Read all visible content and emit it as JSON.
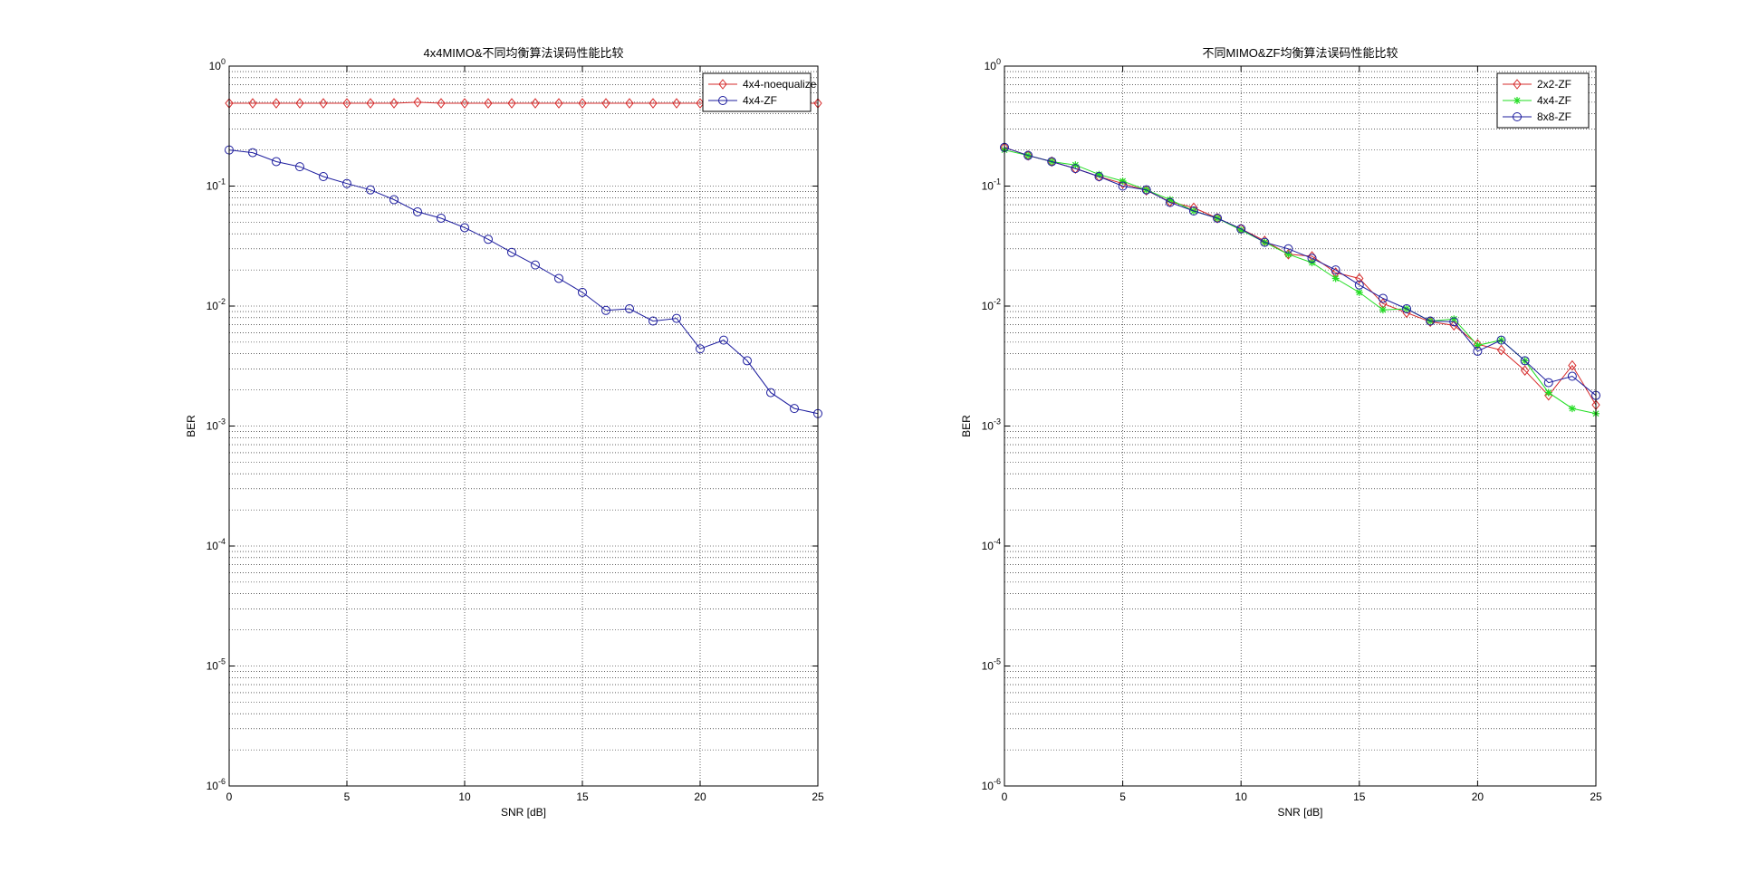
{
  "figure": {
    "background": "#ffffff"
  },
  "chart_data": [
    {
      "type": "line",
      "title": "4x4MIMO&不同均衡算法误码性能比较",
      "xlabel": "SNR [dB]",
      "ylabel": "BER",
      "xlim": [
        0,
        25
      ],
      "ylim": [
        1e-06,
        1
      ],
      "yscale": "log",
      "grid": true,
      "legend_position": "top-right",
      "x_ticks": [
        "0",
        "5",
        "10",
        "15",
        "20",
        "25"
      ],
      "y_tick_exponents": [
        "0",
        "-1",
        "-2",
        "-3",
        "-4",
        "-5",
        "-6"
      ],
      "x": [
        0,
        1,
        2,
        3,
        4,
        5,
        6,
        7,
        8,
        9,
        10,
        11,
        12,
        13,
        14,
        15,
        16,
        17,
        18,
        19,
        20,
        21,
        22,
        23,
        24,
        25
      ],
      "series": [
        {
          "name": "4x4-noequalize",
          "color": "#d62b2b",
          "marker": "diamond",
          "values": [
            0.49,
            0.49,
            0.49,
            0.49,
            0.49,
            0.49,
            0.49,
            0.49,
            0.5,
            0.49,
            0.49,
            0.49,
            0.49,
            0.49,
            0.49,
            0.49,
            0.49,
            0.49,
            0.49,
            0.49,
            0.49,
            0.49,
            0.49,
            0.49,
            0.49,
            0.49
          ]
        },
        {
          "name": "4x4-ZF",
          "color": "#1d1d9e",
          "marker": "circle",
          "values": [
            0.2,
            0.19,
            0.16,
            0.145,
            0.12,
            0.105,
            0.093,
            0.077,
            0.061,
            0.054,
            0.045,
            0.036,
            0.028,
            0.022,
            0.017,
            0.013,
            0.0092,
            0.0095,
            0.0075,
            0.0079,
            0.0044,
            0.0052,
            0.0035,
            0.0019,
            0.0014,
            0.00127
          ]
        }
      ]
    },
    {
      "type": "line",
      "title": "不同MIMO&ZF均衡算法误码性能比较",
      "xlabel": "SNR [dB]",
      "ylabel": "BER",
      "xlim": [
        0,
        25
      ],
      "ylim": [
        1e-06,
        1
      ],
      "yscale": "log",
      "grid": true,
      "legend_position": "top-right",
      "x_ticks": [
        "0",
        "5",
        "10",
        "15",
        "20",
        "25"
      ],
      "y_tick_exponents": [
        "0",
        "-1",
        "-2",
        "-3",
        "-4",
        "-5",
        "-6"
      ],
      "x": [
        0,
        1,
        2,
        3,
        4,
        5,
        6,
        7,
        8,
        9,
        10,
        11,
        12,
        13,
        14,
        15,
        16,
        17,
        18,
        19,
        20,
        21,
        22,
        23,
        24,
        25
      ],
      "series": [
        {
          "name": "2x2-ZF",
          "color": "#d62b2b",
          "marker": "diamond",
          "values": [
            0.21,
            0.18,
            0.16,
            0.14,
            0.12,
            0.105,
            0.092,
            0.074,
            0.066,
            0.054,
            0.044,
            0.035,
            0.027,
            0.026,
            0.019,
            0.017,
            0.0105,
            0.0088,
            0.0074,
            0.0069,
            0.0048,
            0.0043,
            0.0029,
            0.0018,
            0.0032,
            0.0015
          ]
        },
        {
          "name": "4x4-ZF",
          "color": "#22dd22",
          "marker": "star",
          "values": [
            0.2,
            0.18,
            0.16,
            0.15,
            0.125,
            0.11,
            0.093,
            0.077,
            0.062,
            0.054,
            0.043,
            0.034,
            0.027,
            0.023,
            0.017,
            0.013,
            0.0093,
            0.0095,
            0.0075,
            0.0078,
            0.0047,
            0.0052,
            0.0035,
            0.0019,
            0.0014,
            0.00127
          ]
        },
        {
          "name": "8x8-ZF",
          "color": "#1d1d9e",
          "marker": "circle",
          "values": [
            0.21,
            0.18,
            0.16,
            0.14,
            0.12,
            0.1,
            0.093,
            0.073,
            0.062,
            0.054,
            0.044,
            0.034,
            0.03,
            0.025,
            0.02,
            0.015,
            0.0116,
            0.0095,
            0.0075,
            0.0074,
            0.0042,
            0.0052,
            0.0035,
            0.0023,
            0.0026,
            0.0018
          ]
        }
      ]
    }
  ]
}
